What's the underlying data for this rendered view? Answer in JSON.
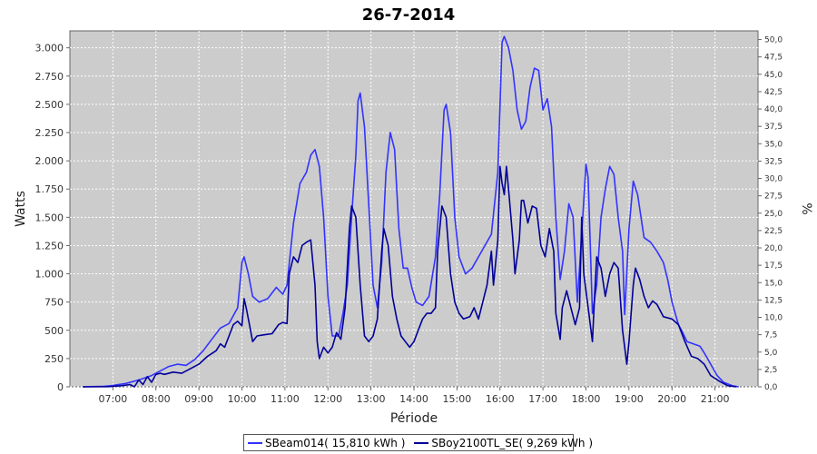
{
  "chart_data": {
    "type": "line",
    "title": "26-7-2014",
    "xlabel": "Période",
    "ylabel": "Watts",
    "y2label": "%",
    "xlim": [
      6.0,
      22.0
    ],
    "ylim": [
      0,
      3150
    ],
    "y2lim": [
      0,
      51.25
    ],
    "x_ticks": [
      7,
      8,
      9,
      10,
      11,
      12,
      13,
      14,
      15,
      16,
      17,
      18,
      19,
      20,
      21
    ],
    "x_tick_labels": [
      "07:00",
      "08:00",
      "09:00",
      "10:00",
      "11:00",
      "12:00",
      "13:00",
      "14:00",
      "15:00",
      "16:00",
      "17:00",
      "18:00",
      "19:00",
      "20:00",
      "21:00"
    ],
    "y_ticks": [
      0,
      250,
      500,
      750,
      1000,
      1250,
      1500,
      1750,
      2000,
      2250,
      2500,
      2750,
      3000
    ],
    "y_tick_labels": [
      "0",
      "250",
      "500",
      "750",
      "1.000",
      "1.250",
      "1.500",
      "1.750",
      "2.000",
      "2.250",
      "2.500",
      "2.750",
      "3.000"
    ],
    "y2_ticks": [
      0,
      2.5,
      5,
      7.5,
      10,
      12.5,
      15,
      17.5,
      20,
      22.5,
      25,
      27.5,
      30,
      32.5,
      35,
      37.5,
      40,
      42.5,
      45,
      47.5,
      50
    ],
    "y2_tick_labels": [
      "0,0",
      "2,5",
      "5,0",
      "7,5",
      "10,0",
      "12,5",
      "15,0",
      "17,5",
      "20,0",
      "22,5",
      "25,0",
      "27,5",
      "30,0",
      "32,5",
      "35,0",
      "37,5",
      "40,0",
      "42,5",
      "45,0",
      "47,5",
      "50,0"
    ],
    "grid": true,
    "legend": "bottom",
    "series": [
      {
        "name": "SBeam014( 15,810 kWh )",
        "color": "#3333ff",
        "points": [
          [
            6.3,
            0
          ],
          [
            6.8,
            5
          ],
          [
            7.0,
            12
          ],
          [
            7.3,
            30
          ],
          [
            7.6,
            60
          ],
          [
            7.9,
            100
          ],
          [
            8.1,
            140
          ],
          [
            8.3,
            180
          ],
          [
            8.5,
            200
          ],
          [
            8.7,
            190
          ],
          [
            8.9,
            240
          ],
          [
            9.1,
            320
          ],
          [
            9.3,
            420
          ],
          [
            9.5,
            520
          ],
          [
            9.7,
            560
          ],
          [
            9.9,
            700
          ],
          [
            10.0,
            1100
          ],
          [
            10.05,
            1150
          ],
          [
            10.15,
            1000
          ],
          [
            10.25,
            800
          ],
          [
            10.4,
            750
          ],
          [
            10.6,
            780
          ],
          [
            10.8,
            880
          ],
          [
            10.95,
            820
          ],
          [
            11.05,
            900
          ],
          [
            11.2,
            1450
          ],
          [
            11.35,
            1800
          ],
          [
            11.5,
            1900
          ],
          [
            11.6,
            2050
          ],
          [
            11.7,
            2100
          ],
          [
            11.8,
            1950
          ],
          [
            11.9,
            1500
          ],
          [
            12.0,
            800
          ],
          [
            12.1,
            450
          ],
          [
            12.25,
            450
          ],
          [
            12.35,
            650
          ],
          [
            12.45,
            900
          ],
          [
            12.55,
            1500
          ],
          [
            12.65,
            2050
          ],
          [
            12.7,
            2530
          ],
          [
            12.75,
            2600
          ],
          [
            12.85,
            2300
          ],
          [
            12.95,
            1600
          ],
          [
            13.05,
            900
          ],
          [
            13.15,
            700
          ],
          [
            13.25,
            1100
          ],
          [
            13.35,
            1900
          ],
          [
            13.45,
            2250
          ],
          [
            13.55,
            2100
          ],
          [
            13.65,
            1400
          ],
          [
            13.75,
            1050
          ],
          [
            13.85,
            1050
          ],
          [
            13.95,
            880
          ],
          [
            14.05,
            750
          ],
          [
            14.2,
            720
          ],
          [
            14.35,
            800
          ],
          [
            14.5,
            1150
          ],
          [
            14.6,
            1700
          ],
          [
            14.7,
            2450
          ],
          [
            14.75,
            2500
          ],
          [
            14.85,
            2250
          ],
          [
            14.95,
            1500
          ],
          [
            15.05,
            1150
          ],
          [
            15.2,
            1000
          ],
          [
            15.35,
            1050
          ],
          [
            15.5,
            1150
          ],
          [
            15.65,
            1250
          ],
          [
            15.8,
            1350
          ],
          [
            15.95,
            1900
          ],
          [
            16.05,
            3050
          ],
          [
            16.1,
            3100
          ],
          [
            16.2,
            3000
          ],
          [
            16.3,
            2800
          ],
          [
            16.4,
            2450
          ],
          [
            16.5,
            2280
          ],
          [
            16.6,
            2350
          ],
          [
            16.7,
            2650
          ],
          [
            16.8,
            2820
          ],
          [
            16.9,
            2800
          ],
          [
            17.0,
            2450
          ],
          [
            17.1,
            2550
          ],
          [
            17.2,
            2300
          ],
          [
            17.3,
            1500
          ],
          [
            17.4,
            950
          ],
          [
            17.5,
            1200
          ],
          [
            17.6,
            1620
          ],
          [
            17.7,
            1500
          ],
          [
            17.8,
            750
          ],
          [
            17.9,
            1350
          ],
          [
            18.0,
            1970
          ],
          [
            18.05,
            1850
          ],
          [
            18.15,
            650
          ],
          [
            18.25,
            900
          ],
          [
            18.35,
            1500
          ],
          [
            18.45,
            1750
          ],
          [
            18.55,
            1950
          ],
          [
            18.65,
            1880
          ],
          [
            18.75,
            1500
          ],
          [
            18.85,
            1200
          ],
          [
            18.9,
            640
          ],
          [
            19.0,
            1400
          ],
          [
            19.1,
            1820
          ],
          [
            19.2,
            1700
          ],
          [
            19.35,
            1320
          ],
          [
            19.5,
            1280
          ],
          [
            19.65,
            1200
          ],
          [
            19.8,
            1100
          ],
          [
            19.9,
            950
          ],
          [
            20.0,
            750
          ],
          [
            20.15,
            550
          ],
          [
            20.25,
            480
          ],
          [
            20.35,
            400
          ],
          [
            20.5,
            380
          ],
          [
            20.65,
            360
          ],
          [
            20.75,
            300
          ],
          [
            20.9,
            200
          ],
          [
            21.05,
            100
          ],
          [
            21.2,
            40
          ],
          [
            21.4,
            10
          ],
          [
            21.55,
            0
          ]
        ]
      },
      {
        "name": "SBoy2100TL_SE( 9,269 kWh )",
        "color": "#000099",
        "points": [
          [
            6.3,
            0
          ],
          [
            6.9,
            2
          ],
          [
            7.2,
            10
          ],
          [
            7.4,
            20
          ],
          [
            7.5,
            0
          ],
          [
            7.6,
            60
          ],
          [
            7.7,
            20
          ],
          [
            7.8,
            90
          ],
          [
            7.9,
            40
          ],
          [
            8.0,
            110
          ],
          [
            8.1,
            120
          ],
          [
            8.2,
            110
          ],
          [
            8.4,
            130
          ],
          [
            8.6,
            120
          ],
          [
            8.8,
            160
          ],
          [
            9.0,
            200
          ],
          [
            9.2,
            270
          ],
          [
            9.4,
            320
          ],
          [
            9.5,
            380
          ],
          [
            9.6,
            350
          ],
          [
            9.7,
            450
          ],
          [
            9.8,
            550
          ],
          [
            9.9,
            580
          ],
          [
            10.0,
            540
          ],
          [
            10.05,
            780
          ],
          [
            10.1,
            700
          ],
          [
            10.2,
            500
          ],
          [
            10.25,
            400
          ],
          [
            10.35,
            450
          ],
          [
            10.5,
            460
          ],
          [
            10.7,
            470
          ],
          [
            10.85,
            550
          ],
          [
            10.95,
            570
          ],
          [
            11.05,
            560
          ],
          [
            11.1,
            1000
          ],
          [
            11.2,
            1150
          ],
          [
            11.3,
            1100
          ],
          [
            11.4,
            1250
          ],
          [
            11.5,
            1280
          ],
          [
            11.6,
            1300
          ],
          [
            11.7,
            900
          ],
          [
            11.75,
            400
          ],
          [
            11.8,
            250
          ],
          [
            11.9,
            350
          ],
          [
            12.0,
            300
          ],
          [
            12.1,
            350
          ],
          [
            12.2,
            480
          ],
          [
            12.3,
            420
          ],
          [
            12.4,
            700
          ],
          [
            12.5,
            1400
          ],
          [
            12.55,
            1600
          ],
          [
            12.65,
            1500
          ],
          [
            12.75,
            900
          ],
          [
            12.85,
            450
          ],
          [
            12.95,
            400
          ],
          [
            13.05,
            450
          ],
          [
            13.15,
            600
          ],
          [
            13.25,
            1200
          ],
          [
            13.3,
            1400
          ],
          [
            13.4,
            1250
          ],
          [
            13.5,
            800
          ],
          [
            13.6,
            600
          ],
          [
            13.7,
            450
          ],
          [
            13.8,
            400
          ],
          [
            13.9,
            350
          ],
          [
            14.0,
            400
          ],
          [
            14.1,
            500
          ],
          [
            14.2,
            600
          ],
          [
            14.3,
            650
          ],
          [
            14.4,
            650
          ],
          [
            14.5,
            700
          ],
          [
            14.55,
            1200
          ],
          [
            14.65,
            1600
          ],
          [
            14.75,
            1500
          ],
          [
            14.85,
            1000
          ],
          [
            14.95,
            750
          ],
          [
            15.05,
            650
          ],
          [
            15.15,
            600
          ],
          [
            15.3,
            620
          ],
          [
            15.4,
            700
          ],
          [
            15.5,
            600
          ],
          [
            15.6,
            750
          ],
          [
            15.7,
            900
          ],
          [
            15.8,
            1200
          ],
          [
            15.85,
            900
          ],
          [
            15.95,
            1300
          ],
          [
            16.0,
            1950
          ],
          [
            16.05,
            1800
          ],
          [
            16.1,
            1700
          ],
          [
            16.15,
            1950
          ],
          [
            16.2,
            1750
          ],
          [
            16.3,
            1300
          ],
          [
            16.35,
            1000
          ],
          [
            16.45,
            1300
          ],
          [
            16.5,
            1650
          ],
          [
            16.55,
            1650
          ],
          [
            16.65,
            1450
          ],
          [
            16.75,
            1600
          ],
          [
            16.85,
            1580
          ],
          [
            16.95,
            1250
          ],
          [
            17.05,
            1150
          ],
          [
            17.15,
            1400
          ],
          [
            17.25,
            1200
          ],
          [
            17.3,
            650
          ],
          [
            17.4,
            420
          ],
          [
            17.45,
            700
          ],
          [
            17.55,
            850
          ],
          [
            17.65,
            700
          ],
          [
            17.75,
            550
          ],
          [
            17.85,
            700
          ],
          [
            17.9,
            1500
          ],
          [
            17.95,
            1000
          ],
          [
            18.05,
            700
          ],
          [
            18.15,
            400
          ],
          [
            18.2,
            800
          ],
          [
            18.25,
            1150
          ],
          [
            18.35,
            1050
          ],
          [
            18.45,
            800
          ],
          [
            18.55,
            1000
          ],
          [
            18.65,
            1100
          ],
          [
            18.75,
            1050
          ],
          [
            18.85,
            500
          ],
          [
            18.95,
            200
          ],
          [
            19.0,
            400
          ],
          [
            19.1,
            900
          ],
          [
            19.15,
            1050
          ],
          [
            19.25,
            950
          ],
          [
            19.35,
            800
          ],
          [
            19.45,
            700
          ],
          [
            19.55,
            760
          ],
          [
            19.65,
            730
          ],
          [
            19.8,
            620
          ],
          [
            20.0,
            600
          ],
          [
            20.15,
            550
          ],
          [
            20.3,
            400
          ],
          [
            20.45,
            270
          ],
          [
            20.6,
            250
          ],
          [
            20.75,
            200
          ],
          [
            20.9,
            100
          ],
          [
            21.1,
            50
          ],
          [
            21.3,
            10
          ],
          [
            21.5,
            0
          ]
        ]
      }
    ]
  }
}
